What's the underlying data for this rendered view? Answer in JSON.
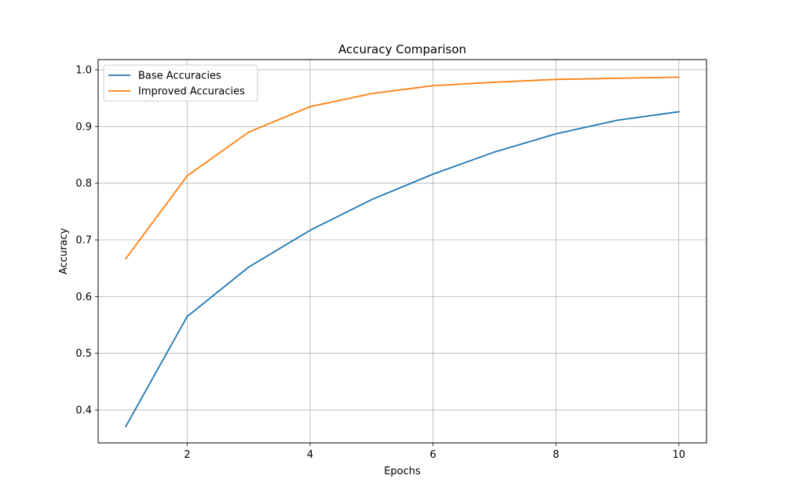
{
  "chart_data": {
    "type": "line",
    "title": "Accuracy Comparison",
    "xlabel": "Epochs",
    "ylabel": "Accuracy",
    "x": [
      1,
      2,
      3,
      4,
      5,
      6,
      7,
      8,
      9,
      10
    ],
    "xlim": [
      0.55,
      10.45
    ],
    "ylim": [
      0.342,
      1.018
    ],
    "xticks": [
      2,
      4,
      6,
      8,
      10
    ],
    "yticks": [
      0.4,
      0.5,
      0.6,
      0.7,
      0.8,
      0.9,
      1.0
    ],
    "xtick_labels": [
      "2",
      "4",
      "6",
      "8",
      "10"
    ],
    "ytick_labels": [
      "0.4",
      "0.5",
      "0.6",
      "0.7",
      "0.8",
      "0.9",
      "1.0"
    ],
    "grid": true,
    "legend_position": "top-left",
    "series": [
      {
        "name": "Base Accuracies",
        "color": "#1f77b4",
        "values": [
          0.371,
          0.565,
          0.652,
          0.717,
          0.771,
          0.816,
          0.855,
          0.887,
          0.911,
          0.926
        ]
      },
      {
        "name": "Improved Accuracies",
        "color": "#ff7f0e",
        "values": [
          0.667,
          0.813,
          0.89,
          0.935,
          0.958,
          0.972,
          0.978,
          0.983,
          0.985,
          0.987
        ]
      }
    ]
  }
}
